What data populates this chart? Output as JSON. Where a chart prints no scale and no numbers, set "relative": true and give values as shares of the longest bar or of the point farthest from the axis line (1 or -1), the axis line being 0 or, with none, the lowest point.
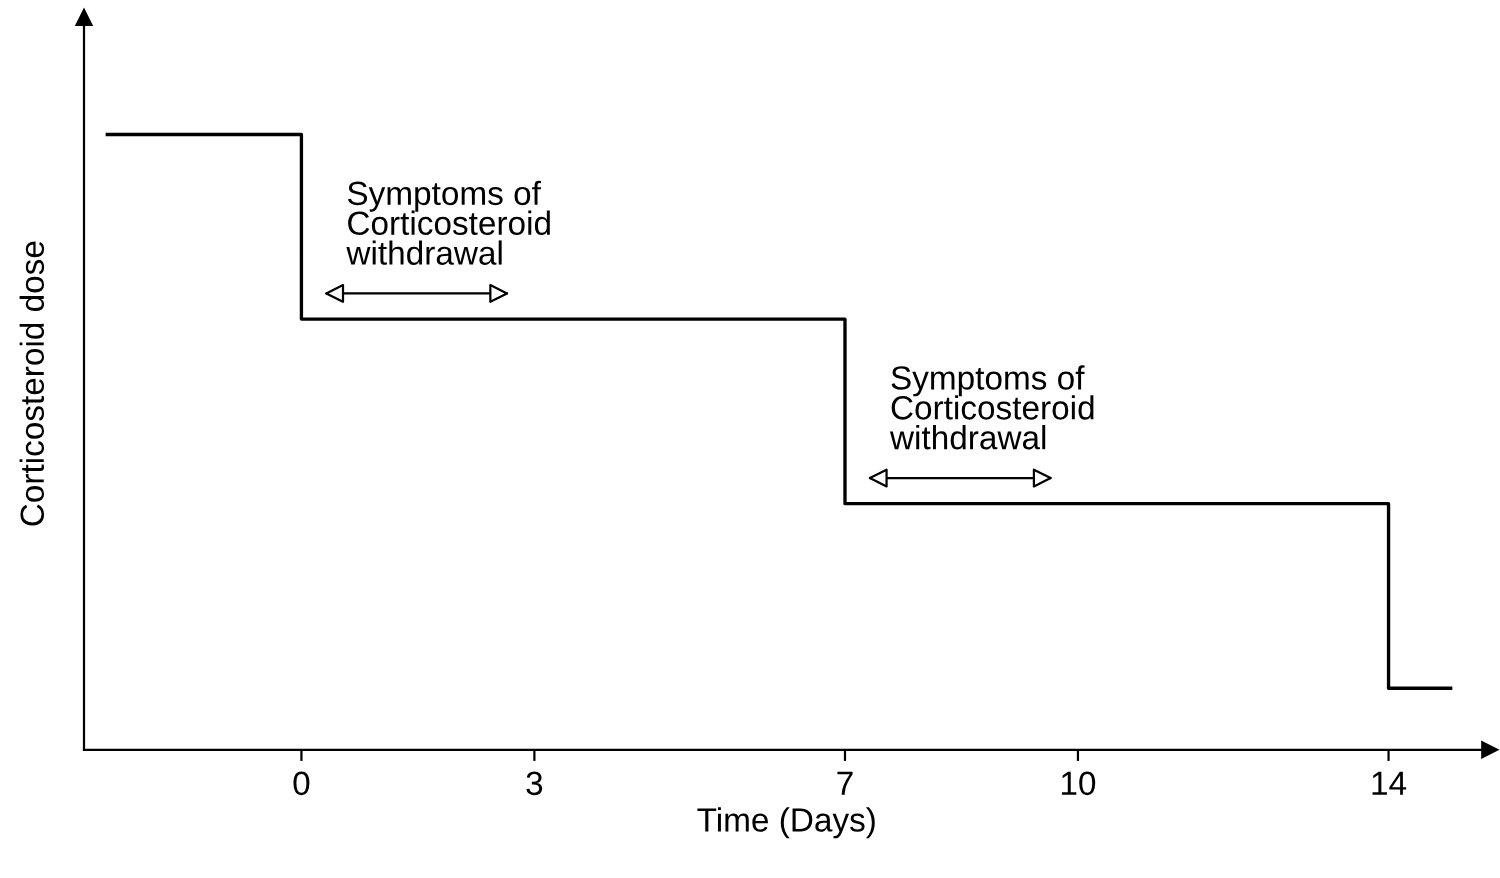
{
  "chart_data": {
    "type": "step",
    "relative": true,
    "xlabel": "Time (Days)",
    "ylabel": "Corticosteroid dose",
    "x": [
      -2.5,
      0,
      7,
      14,
      14.8
    ],
    "series": [
      {
        "color": "#000000",
        "values": [
          1,
          0.7,
          0.4,
          0.1,
          0.1
        ]
      }
    ],
    "xlim": [
      -2.8,
      15.3
    ],
    "xticks": [
      0,
      3,
      7,
      10,
      14
    ],
    "grid": false,
    "marker": "none",
    "line_style": "solid",
    "annotations": [
      {
        "text": "Symptoms of\nCorticosteroid\nwithdrawal",
        "x": 0,
        "y": 0.7
      },
      {
        "text": "Symptoms of\nCorticosteroid\nwithdrawal",
        "x": 7,
        "y": 0.4
      }
    ]
  }
}
